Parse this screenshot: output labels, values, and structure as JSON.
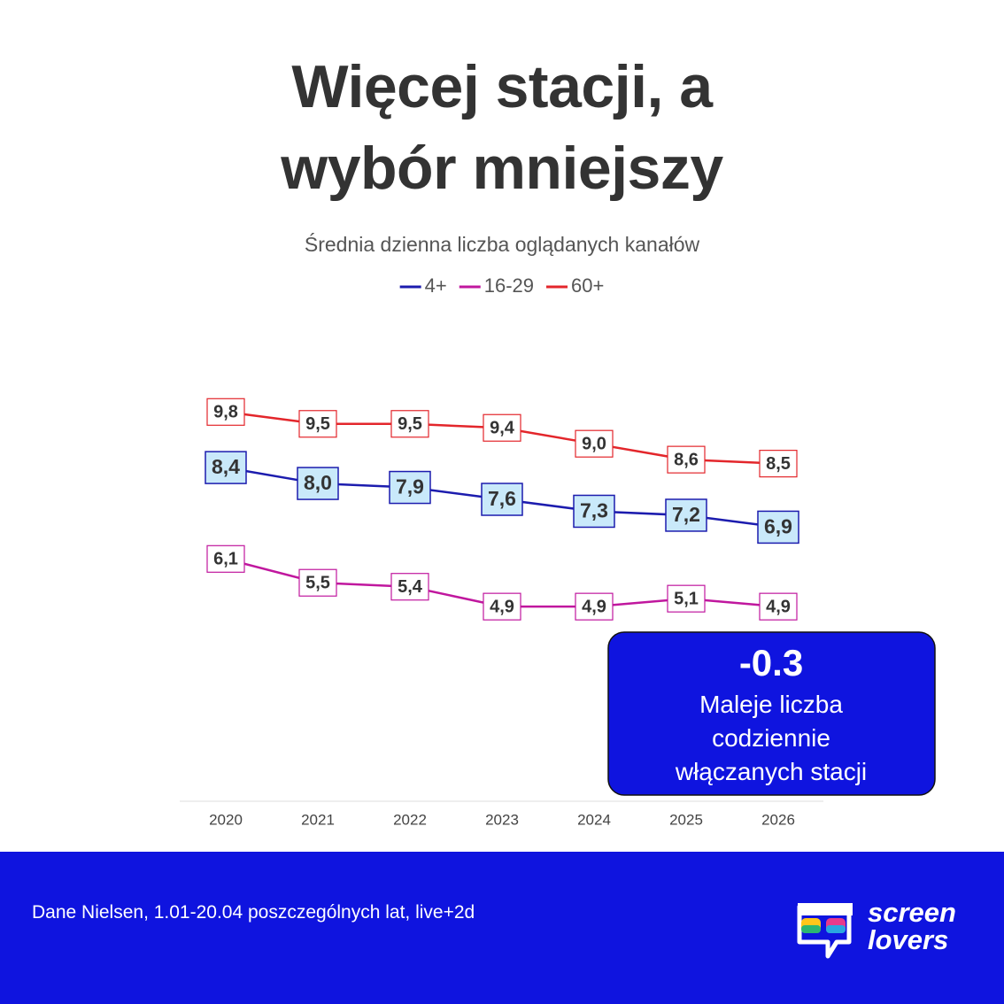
{
  "chart_data": {
    "type": "line",
    "title": "Więcej stacji, a wybór mniejszy",
    "subtitle": "Średnia dzienna liczba oglądanych kanałów",
    "categories": [
      "2020",
      "2021",
      "2022",
      "2023",
      "2024",
      "2025",
      "2026"
    ],
    "series": [
      {
        "name": "4+",
        "color": "#1c1cae",
        "values": [
          8.4,
          8.0,
          7.9,
          7.6,
          7.3,
          7.2,
          6.9
        ],
        "value_labels": [
          "8,4",
          "8,0",
          "7,9",
          "7,6",
          "7,3",
          "7,2",
          "6,9"
        ]
      },
      {
        "name": "16-29",
        "color": "#c0179e",
        "values": [
          6.1,
          5.5,
          5.4,
          4.9,
          4.9,
          5.1,
          4.9
        ],
        "value_labels": [
          "6,1",
          "5,5",
          "5,4",
          "4,9",
          "4,9",
          "5,1",
          "4,9"
        ]
      },
      {
        "name": "60+",
        "color": "#e3262b",
        "values": [
          9.8,
          9.5,
          9.5,
          9.4,
          9.0,
          8.6,
          8.5
        ],
        "value_labels": [
          "9,8",
          "9,5",
          "9,5",
          "9,4",
          "9,0",
          "8,6",
          "8,5"
        ]
      }
    ],
    "ylim": [
      0,
      11.3
    ],
    "legend": "top",
    "annotation": {
      "title": "-0.3",
      "text": "Maleje liczba codziennie włączanych stacji"
    }
  },
  "footer": {
    "source": "Dane Nielsen, 1.01-20.04 poszczególnych lat, live+2d",
    "logo_line1": "screen",
    "logo_line2": "lovers"
  }
}
